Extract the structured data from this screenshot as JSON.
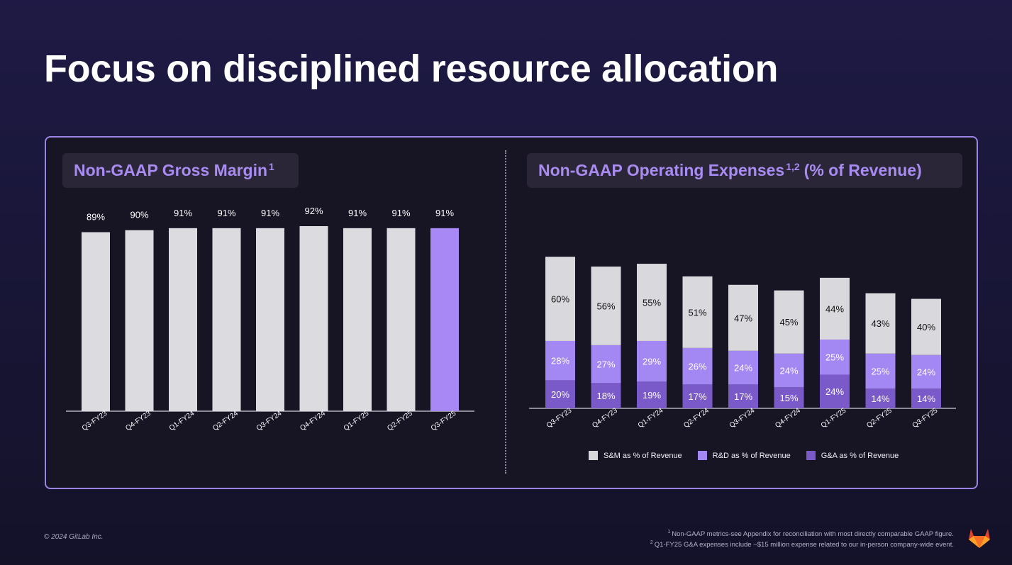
{
  "title": "Focus on disciplined resource allocation",
  "left_chart": {
    "title": "Non-GAAP Gross Margin",
    "title_sup": "1"
  },
  "right_chart": {
    "title": "Non-GAAP Operating Expenses",
    "title_sup": "1,2",
    "title_rest": "(% of Revenue)"
  },
  "colors": {
    "sm": "#d9d8dd",
    "rd": "#a387f2",
    "ga": "#7a59c9",
    "gm_default": "#dcdbe0",
    "gm_highlight": "#a888f5",
    "accent_text": "#a98cf2"
  },
  "chart_data": [
    {
      "type": "bar",
      "categories": [
        "Q3-FY23",
        "Q4-FY23",
        "Q1-FY24",
        "Q2-FY24",
        "Q3-FY24",
        "Q4-FY24",
        "Q1-FY25",
        "Q2-FY25",
        "Q3-FY25"
      ],
      "values": [
        89,
        90,
        91,
        91,
        91,
        92,
        91,
        91,
        91
      ],
      "labels": [
        "89%",
        "90%",
        "91%",
        "91%",
        "91%",
        "92%",
        "91%",
        "91%",
        "91%"
      ],
      "highlight_index": 8,
      "title": "Non-GAAP Gross Margin"
    },
    {
      "type": "bar",
      "stacked": true,
      "categories": [
        "Q3-FY23",
        "Q4-FY23",
        "Q1-FY24",
        "Q2-FY24",
        "Q3-FY24",
        "Q4-FY24",
        "Q1-FY25",
        "Q2-FY25",
        "Q3-FY25"
      ],
      "series": [
        {
          "name": "G&A as % of Revenue",
          "key": "ga",
          "values": [
            20,
            18,
            19,
            17,
            17,
            15,
            24,
            14,
            14
          ],
          "labels": [
            "20%",
            "18%",
            "19%",
            "17%",
            "17%",
            "15%",
            "24%",
            "14%",
            "14%"
          ]
        },
        {
          "name": "R&D as % of Revenue",
          "key": "rd",
          "values": [
            28,
            27,
            29,
            26,
            24,
            24,
            25,
            25,
            24
          ],
          "labels": [
            "28%",
            "27%",
            "29%",
            "26%",
            "24%",
            "24%",
            "25%",
            "25%",
            "24%"
          ]
        },
        {
          "name": "S&M as % of Revenue",
          "key": "sm",
          "values": [
            60,
            56,
            55,
            51,
            47,
            45,
            44,
            43,
            40
          ],
          "labels": [
            "60%",
            "56%",
            "55%",
            "51%",
            "47%",
            "45%",
            "44%",
            "43%",
            "40%"
          ]
        }
      ],
      "title": "Non-GAAP Operating Expenses (% of Revenue)",
      "legend": [
        "S&M as % of Revenue",
        "R&D as % of Revenue",
        "G&A as % of Revenue"
      ]
    }
  ],
  "footer": {
    "copyright": "© 2024 GitLab Inc.",
    "footnote1_sup": "1",
    "footnote1": "Non-GAAP metrics-see Appendix for reconciliation with most directly comparable GAAP figure.",
    "footnote2_sup": "2",
    "footnote2": "Q1-FY25 G&A expenses include ~$15 million expense related to our in-person company-wide event."
  },
  "logo_icon": "gitlab-tanuki-icon"
}
